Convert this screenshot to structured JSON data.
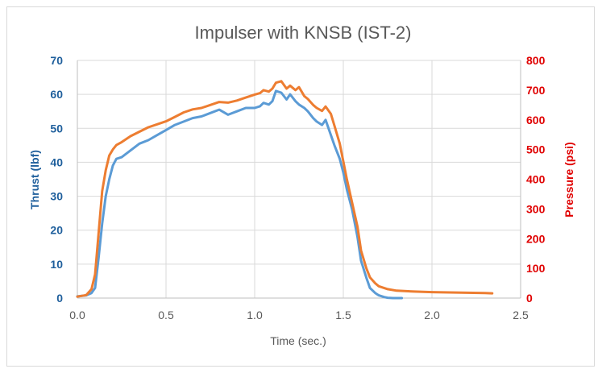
{
  "chart_data": {
    "type": "line",
    "title": "Impulser with KNSB (IST-2)",
    "xlabel": "Time (sec.)",
    "ylabel": "Thrust (lbf)",
    "y2label": "Pressure (psi)",
    "xlim": [
      0,
      2.5
    ],
    "ylim": [
      0,
      70
    ],
    "y2lim": [
      0,
      800
    ],
    "xticks": [
      "0.0",
      "0.5",
      "1.0",
      "1.5",
      "2.0",
      "2.5"
    ],
    "yticks": [
      "0",
      "10",
      "20",
      "30",
      "40",
      "50",
      "60",
      "70"
    ],
    "y2ticks": [
      "0",
      "100",
      "200",
      "300",
      "400",
      "500",
      "600",
      "700",
      "800"
    ],
    "grid": true,
    "legend": "none",
    "series": [
      {
        "name": "Thrust",
        "axis": "left",
        "color": "#5b9bd5",
        "x": [
          0.0,
          0.05,
          0.08,
          0.1,
          0.12,
          0.14,
          0.16,
          0.18,
          0.2,
          0.22,
          0.25,
          0.3,
          0.35,
          0.4,
          0.45,
          0.5,
          0.55,
          0.6,
          0.65,
          0.7,
          0.75,
          0.8,
          0.85,
          0.9,
          0.95,
          1.0,
          1.03,
          1.05,
          1.08,
          1.1,
          1.12,
          1.15,
          1.18,
          1.2,
          1.23,
          1.25,
          1.28,
          1.3,
          1.33,
          1.35,
          1.38,
          1.4,
          1.43,
          1.45,
          1.48,
          1.5,
          1.52,
          1.55,
          1.58,
          1.6,
          1.63,
          1.65,
          1.68,
          1.7,
          1.73,
          1.75,
          1.78,
          1.8,
          1.83
        ],
        "values": [
          0.5,
          0.8,
          1.5,
          3,
          12,
          22,
          30,
          35,
          39,
          41,
          41.5,
          43.5,
          45.5,
          46.5,
          48,
          49.5,
          51,
          52,
          53,
          53.5,
          54.5,
          55.5,
          54,
          55,
          56,
          56,
          56.5,
          57.5,
          57,
          58,
          61,
          60.5,
          58.5,
          60,
          58,
          57,
          56,
          55,
          53,
          52,
          51,
          52.5,
          48,
          45,
          41,
          37,
          32,
          26,
          18,
          11,
          6,
          3,
          1.5,
          0.8,
          0.3,
          0.1,
          0,
          0,
          0
        ]
      },
      {
        "name": "Pressure",
        "axis": "right",
        "color": "#ed7d31",
        "x": [
          0.0,
          0.05,
          0.08,
          0.1,
          0.12,
          0.14,
          0.16,
          0.18,
          0.2,
          0.22,
          0.25,
          0.3,
          0.35,
          0.4,
          0.45,
          0.5,
          0.55,
          0.6,
          0.65,
          0.7,
          0.75,
          0.8,
          0.85,
          0.9,
          0.95,
          1.0,
          1.03,
          1.05,
          1.08,
          1.1,
          1.12,
          1.15,
          1.18,
          1.2,
          1.23,
          1.25,
          1.28,
          1.3,
          1.33,
          1.35,
          1.38,
          1.4,
          1.43,
          1.45,
          1.48,
          1.5,
          1.52,
          1.55,
          1.58,
          1.6,
          1.63,
          1.65,
          1.68,
          1.7,
          1.75,
          1.8,
          1.9,
          2.0,
          2.1,
          2.2,
          2.3,
          2.34
        ],
        "values": [
          5,
          10,
          30,
          80,
          220,
          360,
          430,
          480,
          500,
          515,
          525,
          545,
          560,
          575,
          585,
          595,
          610,
          625,
          635,
          640,
          650,
          660,
          658,
          665,
          675,
          685,
          690,
          700,
          695,
          705,
          725,
          730,
          705,
          715,
          700,
          710,
          680,
          670,
          650,
          640,
          630,
          645,
          620,
          580,
          520,
          460,
          400,
          320,
          240,
          160,
          100,
          70,
          50,
          40,
          30,
          25,
          22,
          20,
          19,
          18,
          17,
          16
        ]
      }
    ]
  }
}
